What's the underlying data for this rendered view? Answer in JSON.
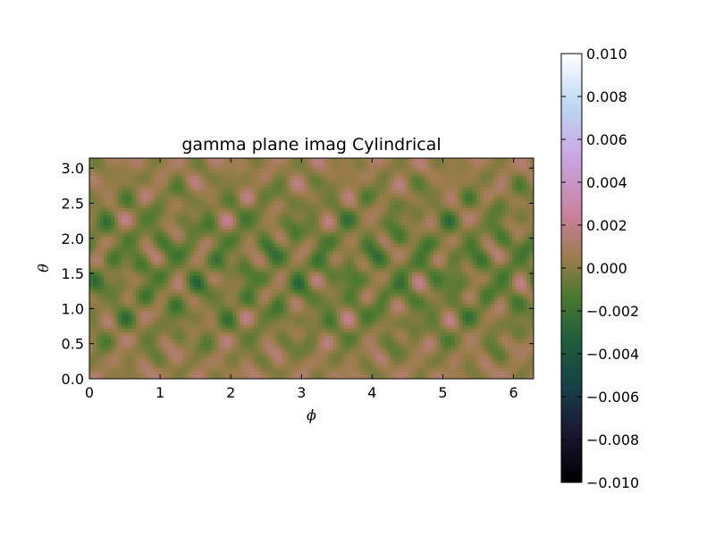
{
  "chart_data": {
    "type": "heatmap",
    "title": "gamma plane imag Cylindrical",
    "xlabel": "ϕ",
    "ylabel": "θ",
    "xlim": [
      0,
      6.2832
    ],
    "ylim": [
      0,
      3.1416
    ],
    "x_ticks": [
      0,
      1,
      2,
      3,
      4,
      5,
      6
    ],
    "x_tick_labels": [
      "0",
      "1",
      "2",
      "3",
      "4",
      "5",
      "6"
    ],
    "y_ticks": [
      0.0,
      0.5,
      1.0,
      1.5,
      2.0,
      2.5,
      3.0
    ],
    "y_tick_labels": [
      "0.0",
      "0.5",
      "1.0",
      "1.5",
      "2.0",
      "2.5",
      "3.0"
    ],
    "colormap": "cubehelix",
    "colorbar": {
      "vmin": -0.01,
      "vmax": 0.01,
      "ticks": [
        -0.01,
        -0.008,
        -0.006,
        -0.004,
        -0.002,
        0.0,
        0.002,
        0.004,
        0.006,
        0.008,
        0.01
      ],
      "tick_labels": [
        "−0.010",
        "−0.008",
        "−0.006",
        "−0.004",
        "−0.002",
        "0.000",
        "0.002",
        "0.004",
        "0.006",
        "0.008",
        "0.010"
      ]
    },
    "grid": false
  },
  "colors": {
    "colormap_stops": [
      "#000000",
      "#1a1530",
      "#173f47",
      "#1d5e3c",
      "#4e7a2f",
      "#9a7c4a",
      "#c9809a",
      "#c9a6e6",
      "#bcd9f2",
      "#ffffff"
    ]
  }
}
